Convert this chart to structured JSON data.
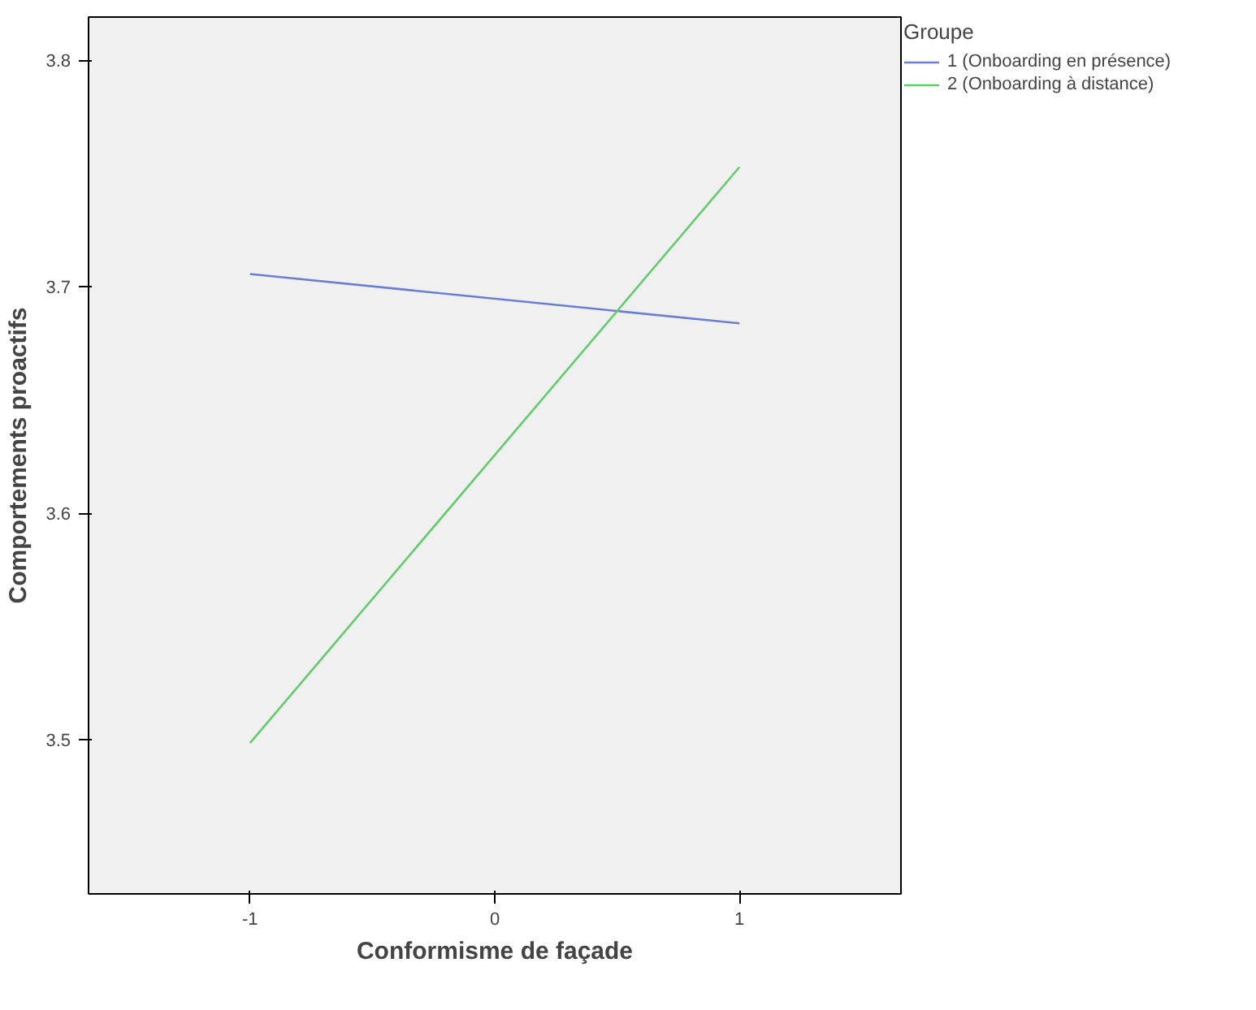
{
  "chart_data": {
    "type": "line",
    "xlabel": "Conformisme de façade",
    "ylabel": "Comportements proactifs",
    "legend_title": "Groupe",
    "x": [
      -1,
      1
    ],
    "series": [
      {
        "name": "1 (Onboarding en présence)",
        "color": "#6b7fd0",
        "values": [
          3.7056,
          3.6838
        ]
      },
      {
        "name": "2 (Onboarding à distance)",
        "color": "#62cc6c",
        "values": [
          3.4986,
          3.7528
        ]
      }
    ],
    "xlim": [
      -1.66,
      1.66
    ],
    "ylim": [
      3.432,
      3.819
    ],
    "xticks": [
      -1,
      0,
      1
    ],
    "yticks": [
      3.5,
      3.6,
      3.7,
      3.8
    ],
    "grid": false,
    "legend": "top right",
    "marker": "none",
    "line_style": "solid"
  }
}
